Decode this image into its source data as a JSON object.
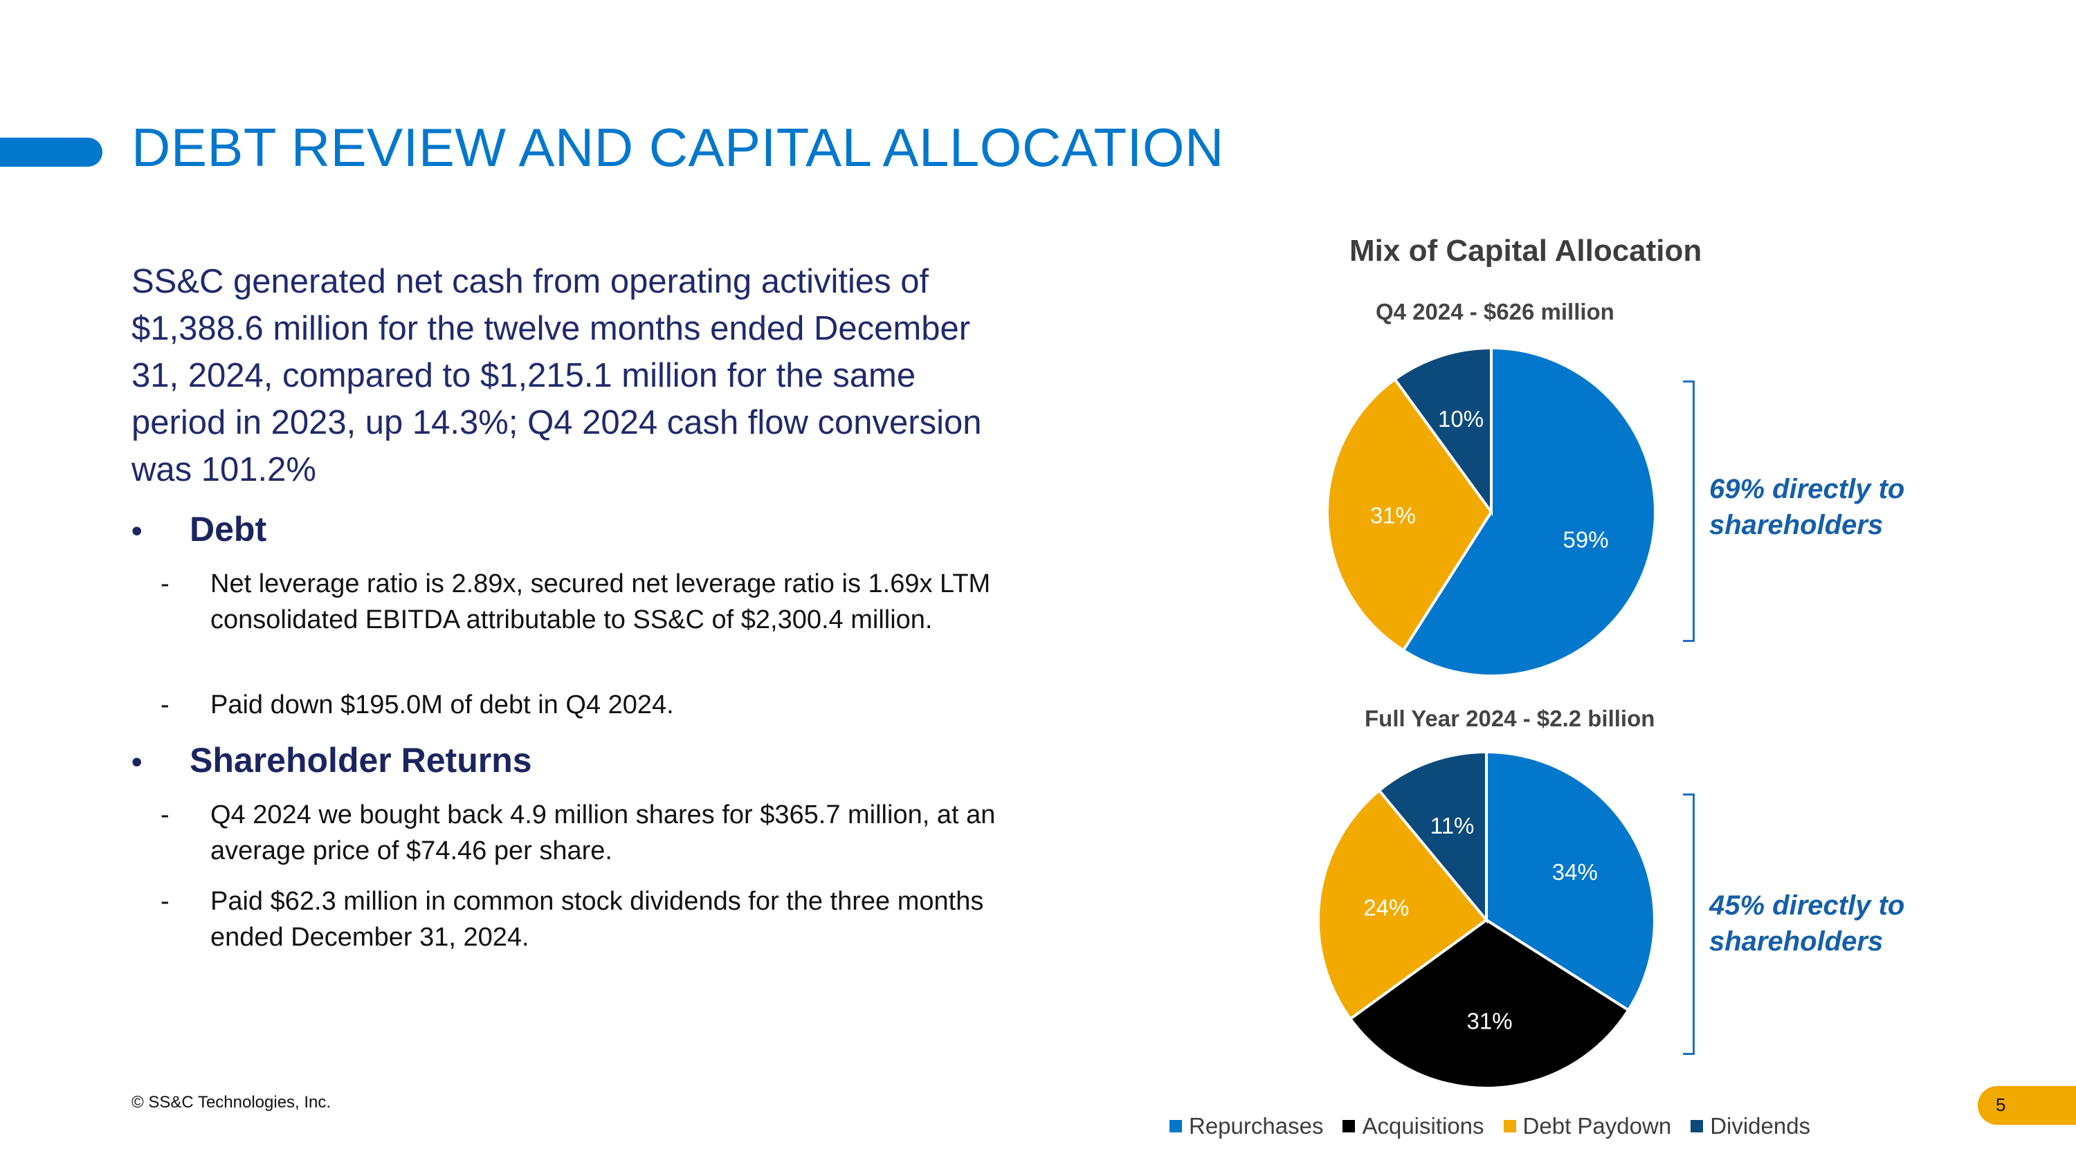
{
  "header": {
    "title": "DEBT REVIEW AND CAPITAL ALLOCATION"
  },
  "body": {
    "intro": "SS&C generated net cash from operating activities of $1,388.6 million for the twelve months ended December 31, 2024, compared to $1,215.1 million for the same period in 2023, up 14.3%; Q4 2024 cash flow conversion was 101.2%",
    "sections": [
      {
        "bullet": "•",
        "heading": "Debt",
        "items": [
          "Net leverage ratio is 2.89x, secured net leverage ratio is 1.69x LTM consolidated EBITDA attributable to SS&C of $2,300.4 million.",
          "Paid down $195.0M of debt in Q4 2024."
        ]
      },
      {
        "bullet": "•",
        "heading": "Shareholder Returns",
        "items": [
          "Q4 2024 we bought back 4.9 million shares for $365.7 million, at an average price of $74.46 per share.",
          "Paid $62.3 million in common stock dividends for the three months ended December 31, 2024."
        ]
      }
    ],
    "dash": "-"
  },
  "footer": {
    "copyright": "© SS&C Technologies, Inc.",
    "page_number": "5"
  },
  "chart_data": {
    "type": "pie",
    "title": "Mix of Capital Allocation",
    "categories": [
      "Repurchases",
      "Acquisitions",
      "Debt Paydown",
      "Dividends"
    ],
    "colors": [
      "#0277cc",
      "#000000",
      "#f2a900",
      "#0d4a7c"
    ],
    "pies": [
      {
        "subtitle": "Q4 2024 - $626 million",
        "values": [
          59,
          0,
          31,
          10
        ],
        "labels": [
          "59%",
          "",
          "31%",
          "10%"
        ],
        "annotation": "69% directly to shareholders"
      },
      {
        "subtitle": "Full Year 2024 - $2.2 billion",
        "values": [
          34,
          31,
          24,
          11
        ],
        "labels": [
          "34%",
          "31%",
          "24%",
          "11%"
        ],
        "annotation": "45% directly to shareholders"
      }
    ],
    "legend": [
      "Repurchases",
      "Acquisitions",
      "Debt Paydown",
      "Dividends"
    ]
  }
}
